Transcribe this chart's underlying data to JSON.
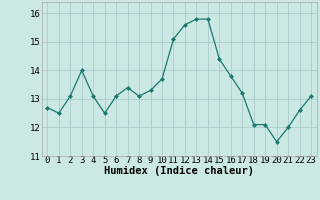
{
  "x": [
    0,
    1,
    2,
    3,
    4,
    5,
    6,
    7,
    8,
    9,
    10,
    11,
    12,
    13,
    14,
    15,
    16,
    17,
    18,
    19,
    20,
    21,
    22,
    23
  ],
  "y": [
    12.7,
    12.5,
    13.1,
    14.0,
    13.1,
    12.5,
    13.1,
    13.4,
    13.1,
    13.3,
    13.7,
    15.1,
    15.6,
    15.8,
    15.8,
    14.4,
    13.8,
    13.2,
    12.1,
    12.1,
    11.5,
    12.0,
    12.6,
    13.1
  ],
  "line_color": "#1a7a6e",
  "marker": "D",
  "marker_size": 2,
  "bg_color": "#cce8e4",
  "grid_color": "#aaccca",
  "spine_color": "#aaaaaa",
  "xlabel": "Humidex (Indice chaleur)",
  "ylim": [
    11,
    16.4
  ],
  "yticks": [
    11,
    12,
    13,
    14,
    15,
    16
  ],
  "xticks": [
    0,
    1,
    2,
    3,
    4,
    5,
    6,
    7,
    8,
    9,
    10,
    11,
    12,
    13,
    14,
    15,
    16,
    17,
    18,
    19,
    20,
    21,
    22,
    23
  ],
  "xlabel_fontsize": 7.5,
  "tick_fontsize": 6.5
}
